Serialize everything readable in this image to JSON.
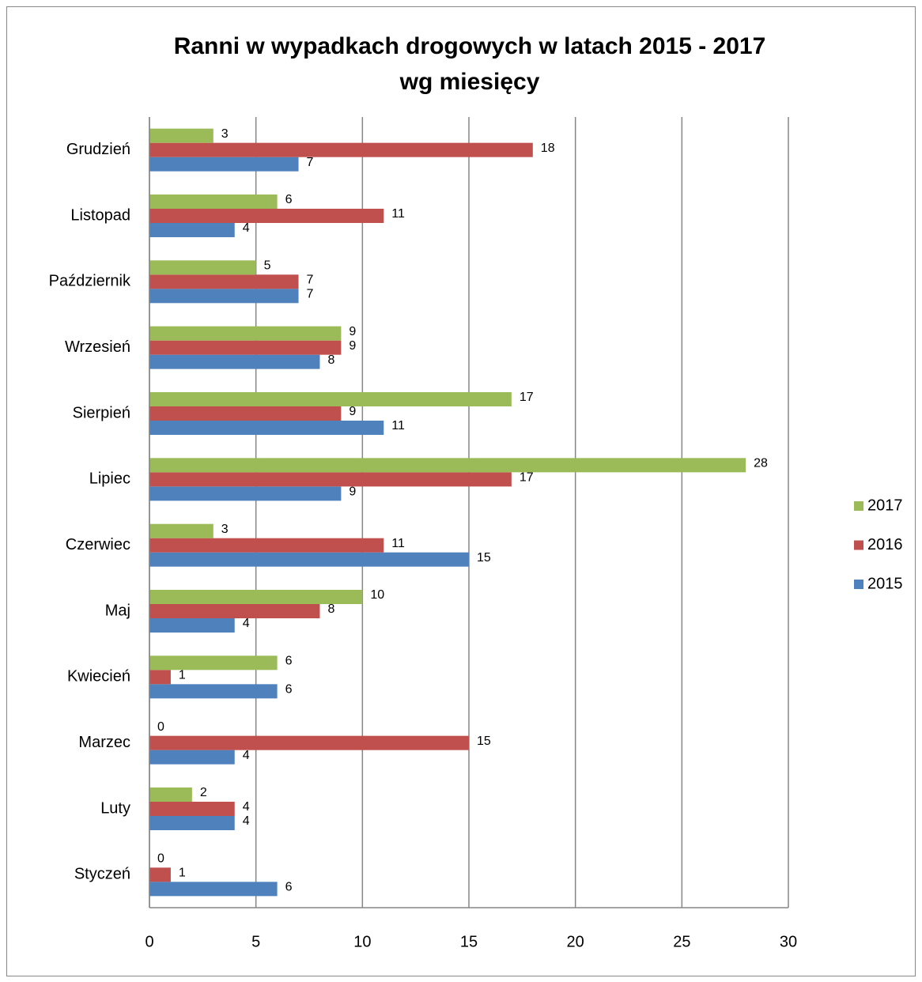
{
  "chart_data": {
    "type": "bar",
    "orientation": "horizontal",
    "title": [
      "Ranni w wypadkach drogowych w latach 2015 - 2017",
      "wg miesięcy"
    ],
    "categories": [
      "Styczeń",
      "Luty",
      "Marzec",
      "Kwiecień",
      "Maj",
      "Czerwiec",
      "Lipiec",
      "Sierpień",
      "Wrzesień",
      "Październik",
      "Listopad",
      "Grudzień"
    ],
    "series": [
      {
        "name": "2015",
        "color": "#4f81bd",
        "values": [
          6,
          4,
          4,
          6,
          4,
          15,
          9,
          11,
          8,
          7,
          4,
          7
        ]
      },
      {
        "name": "2016",
        "color": "#c0504d",
        "values": [
          1,
          4,
          15,
          1,
          8,
          11,
          17,
          9,
          9,
          7,
          11,
          18
        ]
      },
      {
        "name": "2017",
        "color": "#9bbb59",
        "values": [
          0,
          2,
          0,
          6,
          10,
          3,
          28,
          17,
          9,
          5,
          6,
          3
        ]
      }
    ],
    "xlim": [
      0,
      30
    ],
    "xticks": [
      0,
      5,
      10,
      15,
      20,
      25,
      30
    ],
    "grid": true,
    "legend": "right"
  }
}
